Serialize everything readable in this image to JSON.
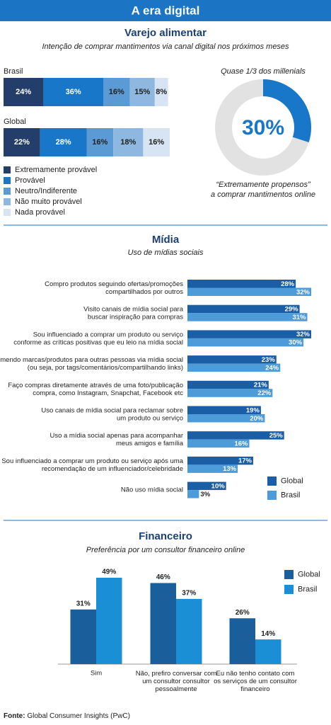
{
  "title": "A era digital",
  "source_label": "Fonte:",
  "source": "Global Consumer Insights (PwC)",
  "chart_data": [
    {
      "type": "stacked_bar",
      "section": "Varejo alimentar",
      "subtitle": "Intenção de comprar mantimentos via canal digital nos próximos meses",
      "categories": [
        "Brasil",
        "Global"
      ],
      "series": [
        {
          "name": "Extremamente provável",
          "color": "#233e6b",
          "values": [
            24,
            22
          ],
          "value_labels": [
            "24%",
            "22%"
          ]
        },
        {
          "name": "Provável",
          "color": "#1877c9",
          "values": [
            36,
            28
          ],
          "value_labels": [
            "36%",
            "28%"
          ]
        },
        {
          "name": "Neutro/Indiferente",
          "color": "#5b9bd5",
          "values": [
            16,
            16
          ],
          "value_labels": [
            "16%",
            "16%"
          ]
        },
        {
          "name": "Não muito provável",
          "color": "#8fb8e0",
          "values": [
            15,
            18
          ],
          "value_labels": [
            "15%",
            "18%"
          ]
        },
        {
          "name": "Nada provável",
          "color": "#d6e4f3",
          "values": [
            8,
            16
          ],
          "value_labels": [
            "8%",
            "16%"
          ]
        }
      ]
    },
    {
      "type": "donut",
      "title": "Quase 1/3 dos millenials",
      "value": 30,
      "value_label": "30%",
      "color": "#1877c9",
      "caption": [
        "“Extremamente propensos”",
        "a comprar mantimentos online"
      ]
    },
    {
      "type": "hbar",
      "section": "Mídia",
      "subtitle": "Uso de mídias sociais",
      "categories": [
        "Compro produtos seguindo ofertas/promoções\ncompartilhados por outros",
        "Visito canais de mídia social para\nbuscar inspiração para compras",
        "Sou influenciado a comprar um produto ou serviço\nconforme as críticas positivas que eu leio na mídia social",
        "Recomendo marcas/produtos para outras pessoas via mídia social\n(ou seja, por tags/comentários/compartilhando links)",
        "Faço compras diretamente através de uma foto/publicação\ncompra, como Instagram, Snapchat, Facebook etc",
        "Uso canais de mídia social para reclamar sobre\num produto ou serviço",
        "Uso a mídia social apenas para acompanhar\nmeus amigos e família",
        "Sou influenciado a comprar um produto ou serviço após uma\nrecomendação de um influenciador/celebridade",
        "Não uso mídia social"
      ],
      "series": [
        {
          "name": "Global",
          "color": "#1a5ea6",
          "values": [
            28,
            29,
            32,
            23,
            21,
            19,
            25,
            17,
            10
          ],
          "value_labels": [
            "28%",
            "29%",
            "32%",
            "23%",
            "21%",
            "19%",
            "25%",
            "17%",
            "10%"
          ]
        },
        {
          "name": "Brasil",
          "color": "#4d9bd9",
          "values": [
            32,
            31,
            30,
            24,
            22,
            20,
            16,
            13,
            3
          ],
          "value_labels": [
            "32%",
            "31%",
            "30%",
            "24%",
            "22%",
            "20%",
            "16%",
            "13%",
            "3%"
          ]
        }
      ]
    },
    {
      "type": "vbar",
      "section": "Financeiro",
      "subtitle": "Preferência por um consultor financeiro online",
      "categories": [
        "Sim",
        "Não, prefiro conversar com\num consultor consultor\npessoalmente",
        "Eu não tenho contato com\nos serviços de um consultor\nfinanceiro"
      ],
      "series": [
        {
          "name": "Global",
          "color": "#1a5e9c",
          "values": [
            31,
            46,
            26
          ],
          "value_labels": [
            "31%",
            "46%",
            "26%"
          ]
        },
        {
          "name": "Brasil",
          "color": "#1b8fd6",
          "values": [
            49,
            37,
            14
          ],
          "value_labels": [
            "49%",
            "37%",
            "14%"
          ]
        }
      ]
    }
  ]
}
